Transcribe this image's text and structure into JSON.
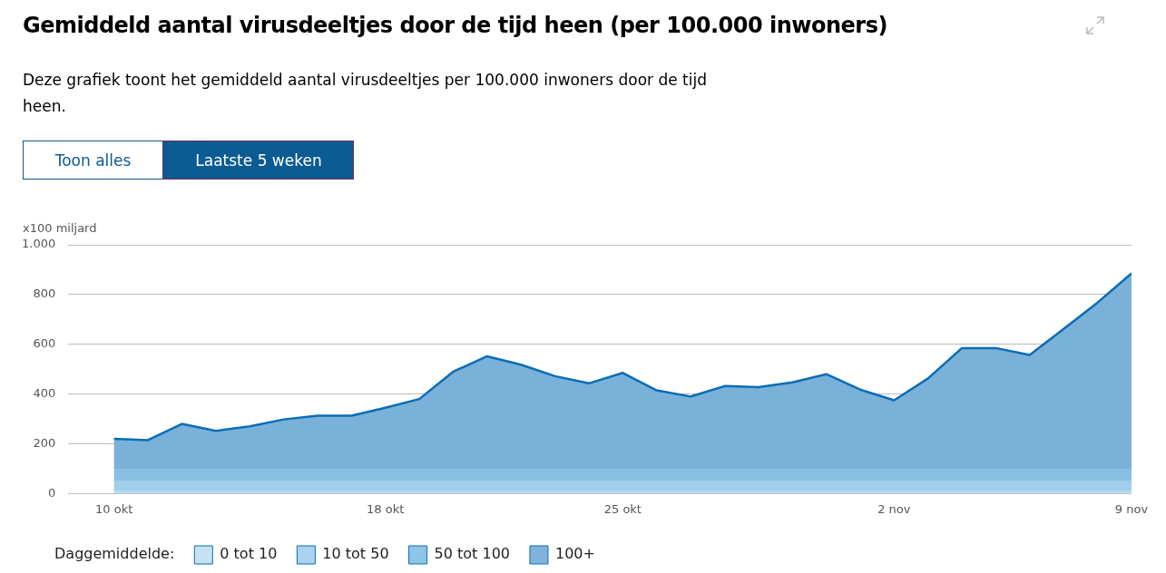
{
  "chart_data": {
    "type": "area",
    "title": "Gemiddeld aantal virusdeeltjes door de tijd heen (per 100.000 inwoners)",
    "subtitle": "Deze grafiek toont het gemiddeld aantal virusdeeltjes per 100.000 inwoners door de tijd heen.",
    "annotations": [
      "Toon alles",
      "Laatste 5 weken"
    ],
    "ylabel": "x100 miljard",
    "categories": [
      "10 okt",
      null,
      null,
      null,
      null,
      null,
      null,
      null,
      "18 okt",
      null,
      null,
      null,
      null,
      null,
      null,
      "25 okt",
      null,
      null,
      null,
      null,
      null,
      null,
      null,
      "2 nov",
      null,
      null,
      null,
      null,
      null,
      null,
      "9 nov"
    ],
    "series": [
      {
        "color": "#0a6db5",
        "values": [
          220,
          215,
          280,
          252,
          270,
          298,
          313,
          313,
          345,
          380,
          490,
          552,
          518,
          472,
          443,
          485,
          415,
          390,
          432,
          428,
          447,
          480,
          418,
          375,
          463,
          585,
          585,
          557,
          662,
          768,
          885
        ]
      }
    ],
    "ylim": [
      0,
      1000
    ],
    "yticks": [
      0,
      200,
      400,
      600,
      800,
      {
        "value": 1000,
        "label": "1.000"
      }
    ],
    "grid": "y",
    "legend": "bottom left",
    "legend_title": "Daggemiddelde:",
    "bands": [
      {
        "axis": "y",
        "from": 0,
        "to": 10,
        "label": "0 tot 10",
        "color": "#c6e2f2"
      },
      {
        "axis": "y",
        "from": 10,
        "to": 50,
        "label": "10 tot 50",
        "color": "#a9d3ee"
      },
      {
        "axis": "y",
        "from": 50,
        "to": 100,
        "label": "50 tot 100",
        "color": "#8ec4e6"
      },
      {
        "axis": "y",
        "from": 100,
        "to": 1000,
        "label": "100+",
        "color": "#7fb5dc"
      }
    ]
  }
}
